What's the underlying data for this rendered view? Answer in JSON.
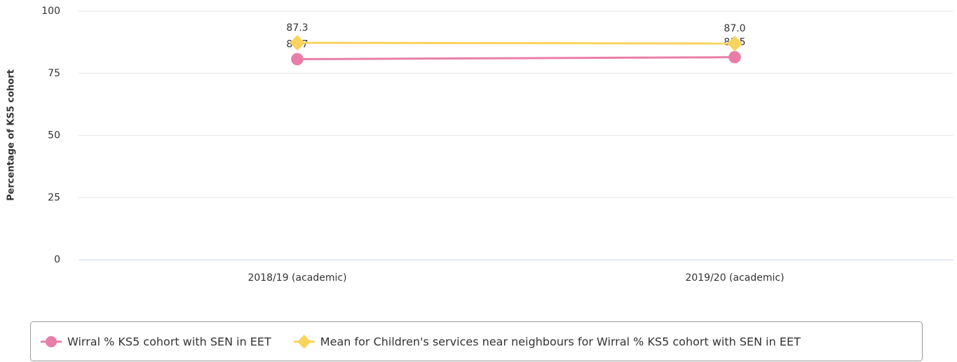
{
  "chart_data": {
    "type": "line",
    "y_label": "Percentage of KS5 cohort",
    "categories": [
      "2018/19 (academic)",
      "2019/20 (academic)"
    ],
    "series": [
      {
        "name": "Wirral % KS5 cohort with SEN in EET",
        "color": "#e87ea8",
        "marker": "circle",
        "values": [
          80.7,
          81.5
        ],
        "value_labels": [
          "80.7",
          "81.5"
        ]
      },
      {
        "name": "Mean for Children's services near neighbours for Wirral % KS5 cohort with SEN in EET",
        "color": "#f9d45c",
        "marker": "diamond",
        "values": [
          87.3,
          87.0
        ],
        "value_labels": [
          "87.3",
          "87.0"
        ]
      }
    ],
    "ylim": [
      0,
      100
    ],
    "yticks": [
      0,
      25,
      50,
      75,
      100
    ],
    "grid": true,
    "legend": "bottom"
  }
}
